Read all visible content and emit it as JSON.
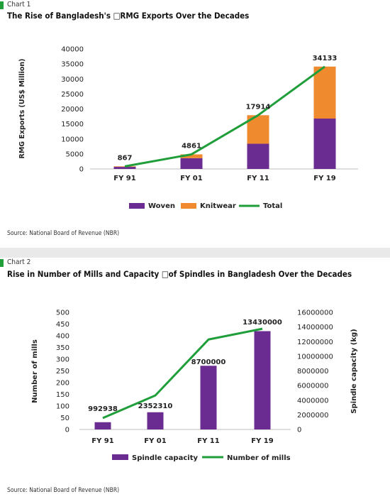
{
  "chart1": {
    "label": "Chart 1",
    "title": "The Rise of Bangladesh's □RMG Exports Over the Decades",
    "source": "Source: National Board of Revenue (NBR)"
  },
  "chart2": {
    "label": "Chart 2",
    "title": "Rise in Number of Mills and Capacity □of Spindles in Bangladesh Over the Decades",
    "source": "Source: National Board of Revenue (NBR)"
  },
  "colors": {
    "woven": "#6a2c91",
    "knitwear": "#ef8a2f",
    "total": "#1f9e3a",
    "spindle": "#6a2c91",
    "mills": "#1f9e3a",
    "accent": "#1f9e3a"
  },
  "chart_data": [
    {
      "type": "bar",
      "stacked": true,
      "title": "The Rise of Bangladesh's □RMG Exports Over the Decades",
      "categories": [
        "FY 91",
        "FY 01",
        "FY 11",
        "FY 19"
      ],
      "ylabel": "RMG Exports (US$ Million)",
      "ylim": [
        0,
        40000
      ],
      "yticks": [
        0,
        5000,
        10000,
        15000,
        20000,
        25000,
        30000,
        35000,
        40000
      ],
      "series": [
        {
          "name": "Woven",
          "type": "bar",
          "values": [
            700,
            3600,
            8400,
            16800
          ]
        },
        {
          "name": "Knitwear",
          "type": "bar",
          "values": [
            167,
            1261,
            9514,
            17333
          ]
        },
        {
          "name": "Total",
          "type": "line",
          "values": [
            867,
            4861,
            17914,
            34133
          ]
        }
      ],
      "data_labels": [
        "867",
        "4861",
        "17914",
        "34133"
      ],
      "legend": "bottom",
      "grid": false
    },
    {
      "type": "bar",
      "title": "Rise in Number of Mills and Capacity □of Spindles in Bangladesh Over the Decades",
      "categories": [
        "FY 91",
        "FY 01",
        "FY 11",
        "FY 19"
      ],
      "ylabel": "Number of mills",
      "y2label": "Spindle capacity (kg)",
      "ylim": [
        0,
        500
      ],
      "yticks": [
        0,
        50,
        100,
        150,
        200,
        250,
        300,
        350,
        400,
        450,
        500
      ],
      "y2lim": [
        0,
        16000000
      ],
      "y2ticks": [
        0,
        2000000,
        4000000,
        6000000,
        8000000,
        10000000,
        12000000,
        14000000,
        16000000
      ],
      "series": [
        {
          "name": "Spindle capacity",
          "type": "bar",
          "axis": "y2",
          "values": [
            992938,
            2352310,
            8700000,
            13430000
          ]
        },
        {
          "name": "Number of mills",
          "type": "line",
          "axis": "y",
          "values": [
            49,
            145,
            384,
            430
          ]
        }
      ],
      "data_labels": [
        "992938",
        "2352310",
        "8700000",
        "13430000"
      ],
      "legend": "bottom",
      "grid": false
    }
  ]
}
